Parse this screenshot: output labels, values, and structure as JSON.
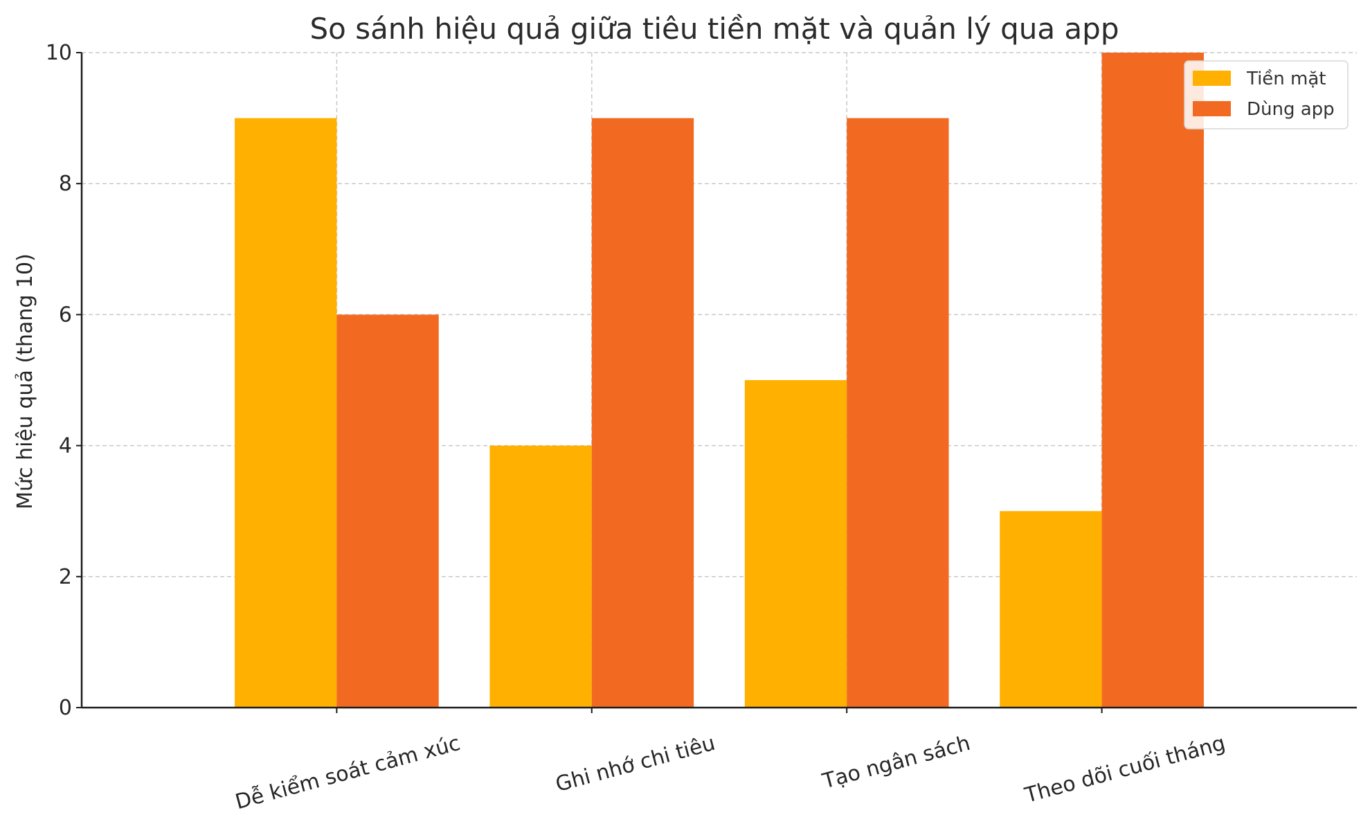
{
  "chart_data": {
    "type": "bar",
    "title": "So sánh hiệu quả giữa tiêu tiền mặt và quản lý qua app",
    "xlabel": "",
    "ylabel": "Mức hiệu quả (thang 10)",
    "categories": [
      "Dễ kiểm soát cảm xúc",
      "Ghi nhớ chi tiêu",
      "Tạo ngân sách",
      "Theo dõi cuối tháng"
    ],
    "series": [
      {
        "name": "Tiền mặt",
        "values": [
          9,
          4,
          5,
          3
        ],
        "color": "#FFB000"
      },
      {
        "name": "Dùng app",
        "values": [
          6,
          9,
          9,
          10
        ],
        "color": "#F26A21"
      }
    ],
    "ylim": [
      0,
      10
    ],
    "yticks": [
      0,
      2,
      4,
      6,
      8,
      10
    ],
    "grid": true,
    "legend_position": "top-right"
  }
}
